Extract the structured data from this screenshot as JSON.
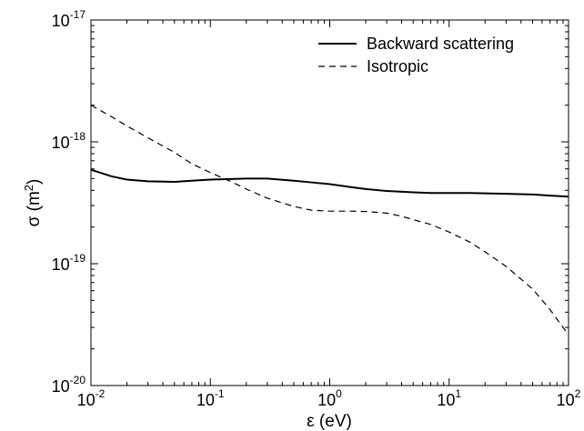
{
  "chart_data": {
    "type": "line",
    "title": "",
    "xlabel": "ε (eV)",
    "ylabel_main": "σ (m",
    "ylabel_sup": "2",
    "ylabel_end": ")",
    "x_scale": "log",
    "y_scale": "log",
    "xlim": [
      0.01,
      100
    ],
    "ylim": [
      1e-20,
      1e-17
    ],
    "grid": false,
    "legend_position": "top-right",
    "x_ticks": [
      {
        "base": "10",
        "exp": "-2",
        "value": 0.01
      },
      {
        "base": "10",
        "exp": "-1",
        "value": 0.1
      },
      {
        "base": "10",
        "exp": "0",
        "value": 1
      },
      {
        "base": "10",
        "exp": "1",
        "value": 10
      },
      {
        "base": "10",
        "exp": "2",
        "value": 100
      }
    ],
    "y_ticks": [
      {
        "base": "10",
        "exp": "-20",
        "value": 1e-20
      },
      {
        "base": "10",
        "exp": "-19",
        "value": 1e-19
      },
      {
        "base": "10",
        "exp": "-18",
        "value": 1e-18
      },
      {
        "base": "10",
        "exp": "-17",
        "value": 1e-17
      }
    ],
    "series": [
      {
        "name": "Backward scattering",
        "style": "solid",
        "color": "#000000",
        "points": [
          [
            0.01,
            5.9e-19
          ],
          [
            0.015,
            5.2e-19
          ],
          [
            0.02,
            4.9e-19
          ],
          [
            0.03,
            4.75e-19
          ],
          [
            0.05,
            4.7e-19
          ],
          [
            0.07,
            4.8e-19
          ],
          [
            0.1,
            4.9e-19
          ],
          [
            0.15,
            4.95e-19
          ],
          [
            0.2,
            5e-19
          ],
          [
            0.3,
            5e-19
          ],
          [
            0.5,
            4.8e-19
          ],
          [
            0.7,
            4.65e-19
          ],
          [
            1,
            4.5e-19
          ],
          [
            1.5,
            4.25e-19
          ],
          [
            2,
            4.1e-19
          ],
          [
            3,
            3.95e-19
          ],
          [
            5,
            3.85e-19
          ],
          [
            7,
            3.8e-19
          ],
          [
            10,
            3.8e-19
          ],
          [
            15,
            3.8e-19
          ],
          [
            20,
            3.78e-19
          ],
          [
            30,
            3.75e-19
          ],
          [
            50,
            3.7e-19
          ],
          [
            70,
            3.62e-19
          ],
          [
            100,
            3.55e-19
          ]
        ]
      },
      {
        "name": "Isotropic",
        "style": "dashed",
        "color": "#000000",
        "points": [
          [
            0.01,
            2e-18
          ],
          [
            0.015,
            1.6e-18
          ],
          [
            0.02,
            1.35e-18
          ],
          [
            0.03,
            1.08e-18
          ],
          [
            0.05,
            8.2e-19
          ],
          [
            0.07,
            6.6e-19
          ],
          [
            0.1,
            5.6e-19
          ],
          [
            0.15,
            4.7e-19
          ],
          [
            0.2,
            4.1e-19
          ],
          [
            0.3,
            3.45e-19
          ],
          [
            0.5,
            2.95e-19
          ],
          [
            0.7,
            2.75e-19
          ],
          [
            1,
            2.7e-19
          ],
          [
            1.5,
            2.7e-19
          ],
          [
            2,
            2.68e-19
          ],
          [
            3,
            2.6e-19
          ],
          [
            4,
            2.45e-19
          ],
          [
            5,
            2.3e-19
          ],
          [
            7,
            2.1e-19
          ],
          [
            10,
            1.82e-19
          ],
          [
            15,
            1.5e-19
          ],
          [
            20,
            1.25e-19
          ],
          [
            30,
            9.5e-20
          ],
          [
            50,
            6.2e-20
          ],
          [
            70,
            4.2e-20
          ],
          [
            100,
            2.6e-20
          ]
        ]
      }
    ]
  }
}
